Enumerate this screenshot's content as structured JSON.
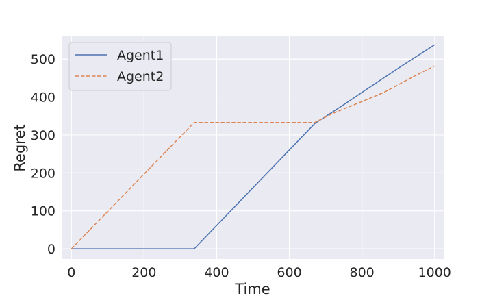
{
  "chart_data": {
    "type": "line",
    "xlabel": "Time",
    "ylabel": "Regret",
    "xlim": [
      -25,
      1025
    ],
    "ylim": [
      -27,
      560
    ],
    "xticks": [
      0,
      200,
      400,
      600,
      800,
      1000
    ],
    "yticks": [
      0,
      100,
      200,
      300,
      400,
      500
    ],
    "grid": true,
    "legend_position": "top-left",
    "series": [
      {
        "name": "Agent1",
        "color": "#4c72b0",
        "style": "solid",
        "x": [
          0,
          338,
          670,
          750,
          800,
          900,
          1000
        ],
        "y": [
          0,
          0,
          330,
          380,
          412,
          476,
          538
        ]
      },
      {
        "name": "Agent2",
        "color": "#dd8452",
        "style": "dashed",
        "x": [
          0,
          338,
          670,
          720,
          800,
          860,
          950,
          1000
        ],
        "y": [
          0,
          333,
          333,
          357,
          388,
          412,
          458,
          482
        ]
      }
    ]
  }
}
